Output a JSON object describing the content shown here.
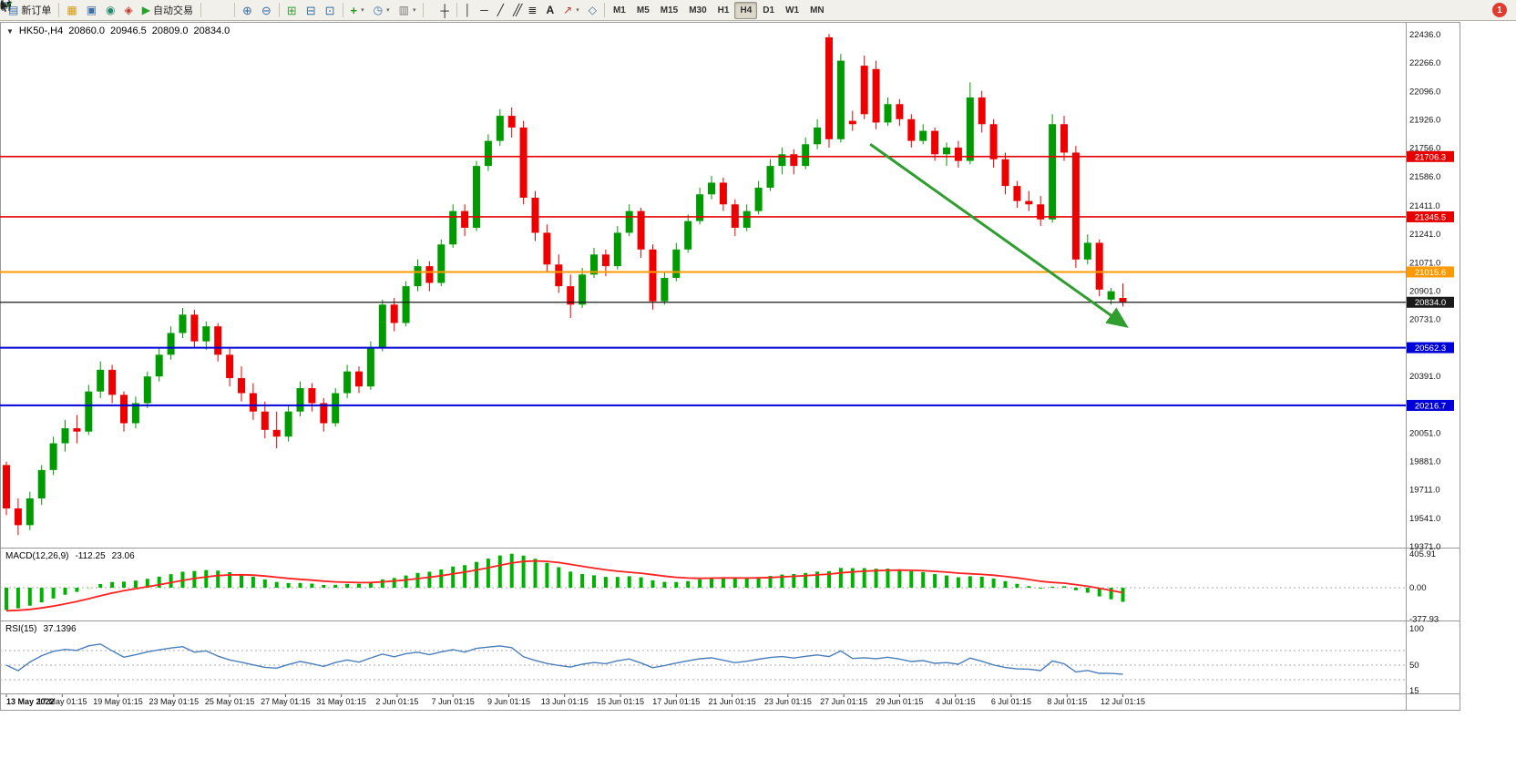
{
  "toolbar": {
    "new_order_label": "新订单",
    "algo_trading_label": "自动交易",
    "timeframes": [
      "M1",
      "M5",
      "M15",
      "M30",
      "H1",
      "H4",
      "D1",
      "W1",
      "MN"
    ],
    "active_timeframe": "H4",
    "notification_badge": "1",
    "text_tool_label": "A"
  },
  "chart_header": {
    "symbol_period": "HK50-,H4",
    "open": "20860.0",
    "high": "20946.5",
    "low": "20809.0",
    "close": "20834.0"
  },
  "indicators": {
    "macd": {
      "name": "MACD(12,26,9)",
      "value": "-112.25",
      "signal_value": "23.06"
    },
    "rsi": {
      "name": "RSI(15)",
      "value": "37.1396"
    }
  },
  "chart_data": {
    "type": "candlestick",
    "symbol": "HK50-",
    "timeframe": "H4",
    "current_ohlc": {
      "open": 20860.0,
      "high": 20946.5,
      "low": 20809.0,
      "close": 20834.0
    },
    "price_axis": {
      "min": 19371.0,
      "max": 22436.0,
      "tick_labels": [
        "22436.0",
        "22266.0",
        "22096.0",
        "21926.0",
        "21756.0",
        "21586.0",
        "21411.0",
        "21241.0",
        "21071.0",
        "20901.0",
        "20731.0",
        "20561.0",
        "20391.0",
        "20221.0",
        "20051.0",
        "19881.0",
        "19711.0",
        "19541.0",
        "19371.0"
      ]
    },
    "hlines": [
      {
        "price": 21706.3,
        "label": "21706.3",
        "color": "#e60000",
        "width": 1.6
      },
      {
        "price": 21345.5,
        "label": "21345.5",
        "color": "#e60000",
        "width": 1.6
      },
      {
        "price": 21015.6,
        "label": "21015.6",
        "color": "#ff9900",
        "width": 2
      },
      {
        "price": 20834.0,
        "label": "20834.0",
        "color": "#1a1a1a",
        "width": 1.2
      },
      {
        "price": 20562.3,
        "label": "20562.3",
        "color": "#0000d8",
        "width": 2
      },
      {
        "price": 20216.7,
        "label": "20216.7",
        "color": "#0000d8",
        "width": 2
      }
    ],
    "trend_arrow": {
      "from_index": 73.5,
      "from_price": 21780,
      "to_index": 95.3,
      "to_price": 20690,
      "color": "#2f9e2f"
    },
    "candles": [
      [
        19860,
        19880,
        19560,
        19600
      ],
      [
        19600,
        19660,
        19440,
        19500
      ],
      [
        19500,
        19700,
        19470,
        19660
      ],
      [
        19660,
        19860,
        19620,
        19830
      ],
      [
        19830,
        20030,
        19800,
        19990
      ],
      [
        19990,
        20130,
        19940,
        20080
      ],
      [
        20080,
        20160,
        19990,
        20060
      ],
      [
        20060,
        20340,
        20040,
        20300
      ],
      [
        20300,
        20480,
        20260,
        20430
      ],
      [
        20430,
        20460,
        20230,
        20280
      ],
      [
        20280,
        20300,
        20060,
        20110
      ],
      [
        20110,
        20270,
        20080,
        20230
      ],
      [
        20230,
        20420,
        20200,
        20390
      ],
      [
        20390,
        20560,
        20360,
        20520
      ],
      [
        20520,
        20690,
        20490,
        20650
      ],
      [
        20650,
        20800,
        20620,
        20760
      ],
      [
        20760,
        20790,
        20560,
        20600
      ],
      [
        20600,
        20720,
        20550,
        20690
      ],
      [
        20690,
        20710,
        20480,
        20520
      ],
      [
        20520,
        20560,
        20330,
        20380
      ],
      [
        20380,
        20450,
        20240,
        20290
      ],
      [
        20290,
        20350,
        20130,
        20180
      ],
      [
        20180,
        20240,
        20020,
        20070
      ],
      [
        20070,
        20180,
        19960,
        20030
      ],
      [
        20030,
        20220,
        20000,
        20180
      ],
      [
        20180,
        20360,
        20150,
        20320
      ],
      [
        20320,
        20350,
        20180,
        20230
      ],
      [
        20230,
        20260,
        20060,
        20110
      ],
      [
        20110,
        20320,
        20090,
        20290
      ],
      [
        20290,
        20460,
        20260,
        20420
      ],
      [
        20420,
        20450,
        20290,
        20330
      ],
      [
        20330,
        20600,
        20310,
        20560
      ],
      [
        20560,
        20850,
        20540,
        20820
      ],
      [
        20820,
        20860,
        20660,
        20710
      ],
      [
        20710,
        20960,
        20690,
        20930
      ],
      [
        20930,
        21090,
        20900,
        21050
      ],
      [
        21050,
        21080,
        20900,
        20950
      ],
      [
        20950,
        21210,
        20930,
        21180
      ],
      [
        21180,
        21420,
        21160,
        21380
      ],
      [
        21380,
        21420,
        21230,
        21280
      ],
      [
        21280,
        21680,
        21260,
        21650
      ],
      [
        21650,
        21840,
        21620,
        21800
      ],
      [
        21800,
        21990,
        21770,
        21950
      ],
      [
        21950,
        22000,
        21820,
        21880
      ],
      [
        21880,
        21920,
        21420,
        21460
      ],
      [
        21460,
        21500,
        21200,
        21250
      ],
      [
        21250,
        21300,
        21010,
        21060
      ],
      [
        21060,
        21120,
        20890,
        20930
      ],
      [
        20930,
        21000,
        20740,
        20820
      ],
      [
        20820,
        21040,
        20800,
        21000
      ],
      [
        21000,
        21160,
        20980,
        21120
      ],
      [
        21120,
        21150,
        20990,
        21050
      ],
      [
        21050,
        21290,
        21030,
        21250
      ],
      [
        21250,
        21420,
        21230,
        21380
      ],
      [
        21380,
        21400,
        21100,
        21150
      ],
      [
        21150,
        21180,
        20790,
        20840
      ],
      [
        20840,
        21010,
        20820,
        20980
      ],
      [
        20980,
        21190,
        20960,
        21150
      ],
      [
        21150,
        21360,
        21130,
        21320
      ],
      [
        21320,
        21520,
        21300,
        21480
      ],
      [
        21480,
        21590,
        21450,
        21550
      ],
      [
        21550,
        21580,
        21380,
        21420
      ],
      [
        21420,
        21450,
        21230,
        21280
      ],
      [
        21280,
        21420,
        21260,
        21380
      ],
      [
        21380,
        21560,
        21360,
        21520
      ],
      [
        21520,
        21690,
        21500,
        21650
      ],
      [
        21650,
        21760,
        21600,
        21720
      ],
      [
        21720,
        21750,
        21600,
        21650
      ],
      [
        21650,
        21820,
        21630,
        21780
      ],
      [
        21780,
        21930,
        21750,
        21880
      ],
      [
        22420,
        22440,
        21760,
        21810
      ],
      [
        21810,
        22320,
        21790,
        22280
      ],
      [
        21920,
        21980,
        21860,
        21900
      ],
      [
        22250,
        22310,
        21930,
        21960
      ],
      [
        22230,
        22280,
        21870,
        21910
      ],
      [
        21910,
        22060,
        21890,
        22020
      ],
      [
        22020,
        22050,
        21890,
        21930
      ],
      [
        21930,
        21960,
        21760,
        21800
      ],
      [
        21800,
        21900,
        21780,
        21860
      ],
      [
        21860,
        21880,
        21680,
        21720
      ],
      [
        21720,
        21790,
        21650,
        21760
      ],
      [
        21760,
        21800,
        21640,
        21680
      ],
      [
        21680,
        22150,
        21660,
        22060
      ],
      [
        22060,
        22100,
        21850,
        21900
      ],
      [
        21900,
        21930,
        21640,
        21690
      ],
      [
        21690,
        21730,
        21480,
        21530
      ],
      [
        21530,
        21560,
        21400,
        21440
      ],
      [
        21440,
        21500,
        21380,
        21420
      ],
      [
        21420,
        21470,
        21290,
        21330
      ],
      [
        21330,
        21960,
        21310,
        21900
      ],
      [
        21900,
        21950,
        21680,
        21730
      ],
      [
        21730,
        21770,
        21040,
        21090
      ],
      [
        21090,
        21240,
        21060,
        21190
      ],
      [
        21190,
        21210,
        20870,
        20910
      ],
      [
        20850,
        20920,
        20820,
        20900
      ],
      [
        20860,
        20946.5,
        20809,
        20834
      ]
    ],
    "time_labels": [
      "13 May 2022",
      "17 May 01:15",
      "19 May 01:15",
      "23 May 01:15",
      "25 May 01:15",
      "27 May 01:15",
      "31 May 01:15",
      "2 Jun 01:15",
      "7 Jun 01:15",
      "9 Jun 01:15",
      "13 Jun 01:15",
      "15 Jun 01:15",
      "17 Jun 01:15",
      "21 Jun 01:15",
      "23 Jun 01:15",
      "27 Jun 01:15",
      "29 Jun 01:15",
      "4 Jul 01:15",
      "6 Jul 01:15",
      "8 Jul 01:15",
      "12 Jul 01:15"
    ],
    "macd_axis": [
      {
        "v": 405.91,
        "t": "405.91"
      },
      {
        "v": 0,
        "t": "0.00"
      },
      {
        "v": -377.93,
        "t": "-377.93"
      }
    ],
    "rsi_axis": [
      {
        "v": 100,
        "t": "100"
      },
      {
        "v": 50,
        "t": "50"
      },
      {
        "v": 15,
        "t": "15"
      }
    ],
    "rsi_levels": [
      70,
      50,
      30
    ],
    "colors": {
      "up": "#009b00",
      "down": "#ee0000",
      "macd_bar": "#00b200",
      "macd_signal": "#ff2020",
      "rsi_line": "#4a7ebb",
      "grid": "#aaaaaa"
    }
  }
}
